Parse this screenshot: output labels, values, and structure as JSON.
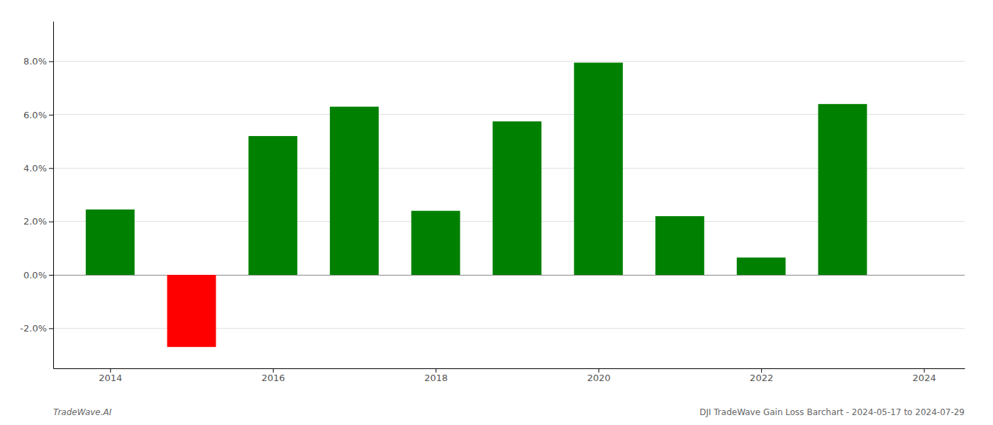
{
  "chart_data": {
    "type": "bar",
    "x": [
      2014,
      2015,
      2016,
      2017,
      2018,
      2019,
      2020,
      2021,
      2022,
      2023
    ],
    "values": [
      2.45,
      -2.7,
      5.2,
      6.3,
      2.4,
      5.75,
      7.95,
      2.2,
      0.65,
      6.4
    ],
    "colors": [
      "#008000",
      "#ff0000",
      "#008000",
      "#008000",
      "#008000",
      "#008000",
      "#008000",
      "#008000",
      "#008000",
      "#008000"
    ],
    "xlim": [
      2013.3,
      2024.5
    ],
    "xticks": [
      2014,
      2016,
      2018,
      2020,
      2022,
      2024
    ],
    "ylim": [
      -3.5,
      9.5
    ],
    "yticks": [
      {
        "value": -2.0,
        "label": "-2.0%"
      },
      {
        "value": 0.0,
        "label": "0.0%"
      },
      {
        "value": 2.0,
        "label": "2.0%"
      },
      {
        "value": 4.0,
        "label": "4.0%"
      },
      {
        "value": 6.0,
        "label": "6.0%"
      },
      {
        "value": 8.0,
        "label": "8.0%"
      }
    ],
    "grid": true,
    "annotations": [
      "TradeWave.AI",
      "DJI TradeWave Gain Loss Barchart - 2024-05-17 to 2024-07-29"
    ]
  }
}
